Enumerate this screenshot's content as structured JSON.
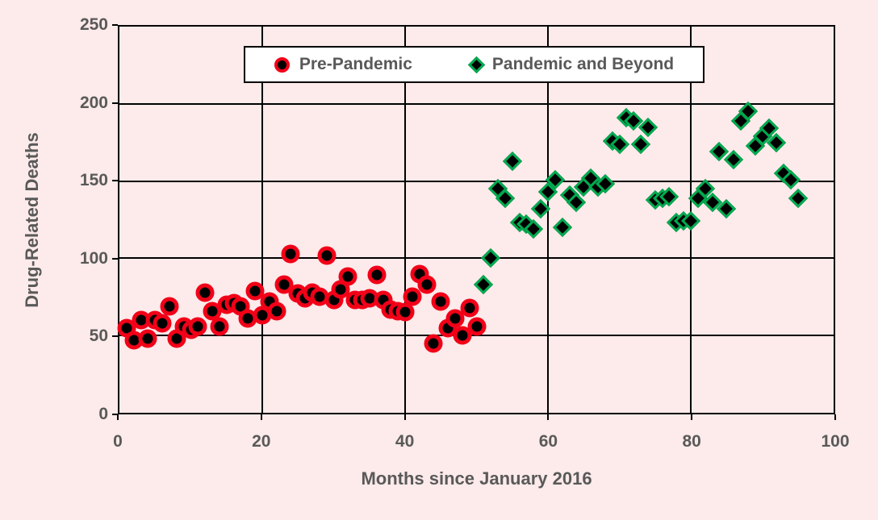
{
  "colors": {
    "background": "#fdeaea",
    "plot_background": "#fdeaea",
    "grid_and_frame": "#000000",
    "text": "#595959",
    "legend_background": "#ffffff",
    "pre_pandemic_marker_outline": "#f10018",
    "pre_pandemic_marker_fill": "#000000",
    "pandemic_marker_outline": "#00ab50",
    "pandemic_marker_fill": "#000000"
  },
  "chart_data": {
    "type": "scatter",
    "title": "",
    "xlabel": "Months since January 2016",
    "ylabel": "Drug-Related Deaths",
    "xlim": [
      0,
      100
    ],
    "ylim": [
      0,
      250
    ],
    "x_ticks": [
      0,
      20,
      40,
      60,
      80,
      100
    ],
    "y_ticks": [
      0,
      50,
      100,
      150,
      200,
      250
    ],
    "grid": true,
    "legend_position": "top-center",
    "series": [
      {
        "name": "Pre-Pandemic",
        "marker": "circle",
        "points": [
          [
            1,
            55
          ],
          [
            2,
            47
          ],
          [
            3,
            60
          ],
          [
            4,
            48
          ],
          [
            5,
            60
          ],
          [
            6,
            58
          ],
          [
            7,
            69
          ],
          [
            8,
            48
          ],
          [
            9,
            56
          ],
          [
            10,
            54
          ],
          [
            11,
            56
          ],
          [
            12,
            78
          ],
          [
            13,
            66
          ],
          [
            14,
            56
          ],
          [
            15,
            70
          ],
          [
            16,
            71
          ],
          [
            17,
            69
          ],
          [
            18,
            61
          ],
          [
            19,
            79
          ],
          [
            20,
            63
          ],
          [
            21,
            72
          ],
          [
            22,
            66
          ],
          [
            23,
            83
          ],
          [
            24,
            103
          ],
          [
            25,
            77
          ],
          [
            26,
            74
          ],
          [
            27,
            78
          ],
          [
            28,
            75
          ],
          [
            29,
            102
          ],
          [
            30,
            73
          ],
          [
            31,
            80
          ],
          [
            32,
            88
          ],
          [
            33,
            73
          ],
          [
            34,
            73
          ],
          [
            35,
            74
          ],
          [
            36,
            89
          ],
          [
            37,
            73
          ],
          [
            38,
            67
          ],
          [
            39,
            66
          ],
          [
            40,
            65
          ],
          [
            41,
            75
          ],
          [
            42,
            90
          ],
          [
            43,
            83
          ],
          [
            44,
            45
          ],
          [
            45,
            72
          ],
          [
            46,
            55
          ],
          [
            47,
            61
          ],
          [
            48,
            50
          ],
          [
            49,
            68
          ],
          [
            50,
            56
          ]
        ]
      },
      {
        "name": "Pandemic and Beyond",
        "marker": "diamond",
        "points": [
          [
            51,
            83
          ],
          [
            52,
            100
          ],
          [
            53,
            145
          ],
          [
            54,
            139
          ],
          [
            55,
            163
          ],
          [
            56,
            123
          ],
          [
            57,
            122
          ],
          [
            58,
            119
          ],
          [
            59,
            132
          ],
          [
            60,
            143
          ],
          [
            61,
            151
          ],
          [
            62,
            120
          ],
          [
            63,
            141
          ],
          [
            64,
            136
          ],
          [
            65,
            146
          ],
          [
            66,
            152
          ],
          [
            67,
            146
          ],
          [
            68,
            148
          ],
          [
            69,
            176
          ],
          [
            70,
            174
          ],
          [
            71,
            191
          ],
          [
            72,
            189
          ],
          [
            73,
            174
          ],
          [
            74,
            185
          ],
          [
            75,
            138
          ],
          [
            76,
            139
          ],
          [
            77,
            140
          ],
          [
            78,
            123
          ],
          [
            79,
            124
          ],
          [
            80,
            124
          ],
          [
            81,
            139
          ],
          [
            82,
            145
          ],
          [
            83,
            136
          ],
          [
            84,
            169
          ],
          [
            85,
            132
          ],
          [
            86,
            164
          ],
          [
            87,
            189
          ],
          [
            88,
            195
          ],
          [
            89,
            173
          ],
          [
            90,
            179
          ],
          [
            91,
            184
          ],
          [
            92,
            175
          ],
          [
            93,
            155
          ],
          [
            94,
            151
          ],
          [
            95,
            139
          ]
        ]
      }
    ]
  }
}
